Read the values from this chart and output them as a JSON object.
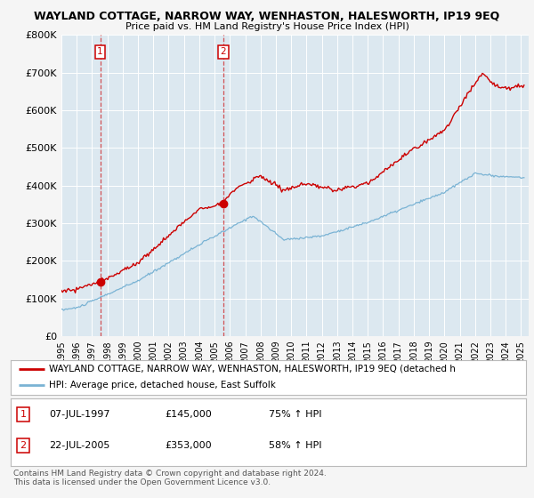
{
  "title": "WAYLAND COTTAGE, NARROW WAY, WENHASTON, HALESWORTH, IP19 9EQ",
  "subtitle": "Price paid vs. HM Land Registry's House Price Index (HPI)",
  "ylim": [
    0,
    800000
  ],
  "yticks": [
    0,
    100000,
    200000,
    300000,
    400000,
    500000,
    600000,
    700000,
    800000
  ],
  "ytick_labels": [
    "£0",
    "£100K",
    "£200K",
    "£300K",
    "£400K",
    "£500K",
    "£600K",
    "£700K",
    "£800K"
  ],
  "hpi_color": "#7ab3d4",
  "price_color": "#cc0000",
  "sale1_year": 1997.53,
  "sale1_price": 145000,
  "sale2_year": 2005.55,
  "sale2_price": 353000,
  "fig_background": "#f5f5f5",
  "plot_background": "#dce8f0",
  "grid_color": "#ffffff",
  "legend_line1": "WAYLAND COTTAGE, NARROW WAY, WENHASTON, HALESWORTH, IP19 9EQ (detached h",
  "legend_line2": "HPI: Average price, detached house, East Suffolk",
  "copyright": "Contains HM Land Registry data © Crown copyright and database right 2024.\nThis data is licensed under the Open Government Licence v3.0."
}
